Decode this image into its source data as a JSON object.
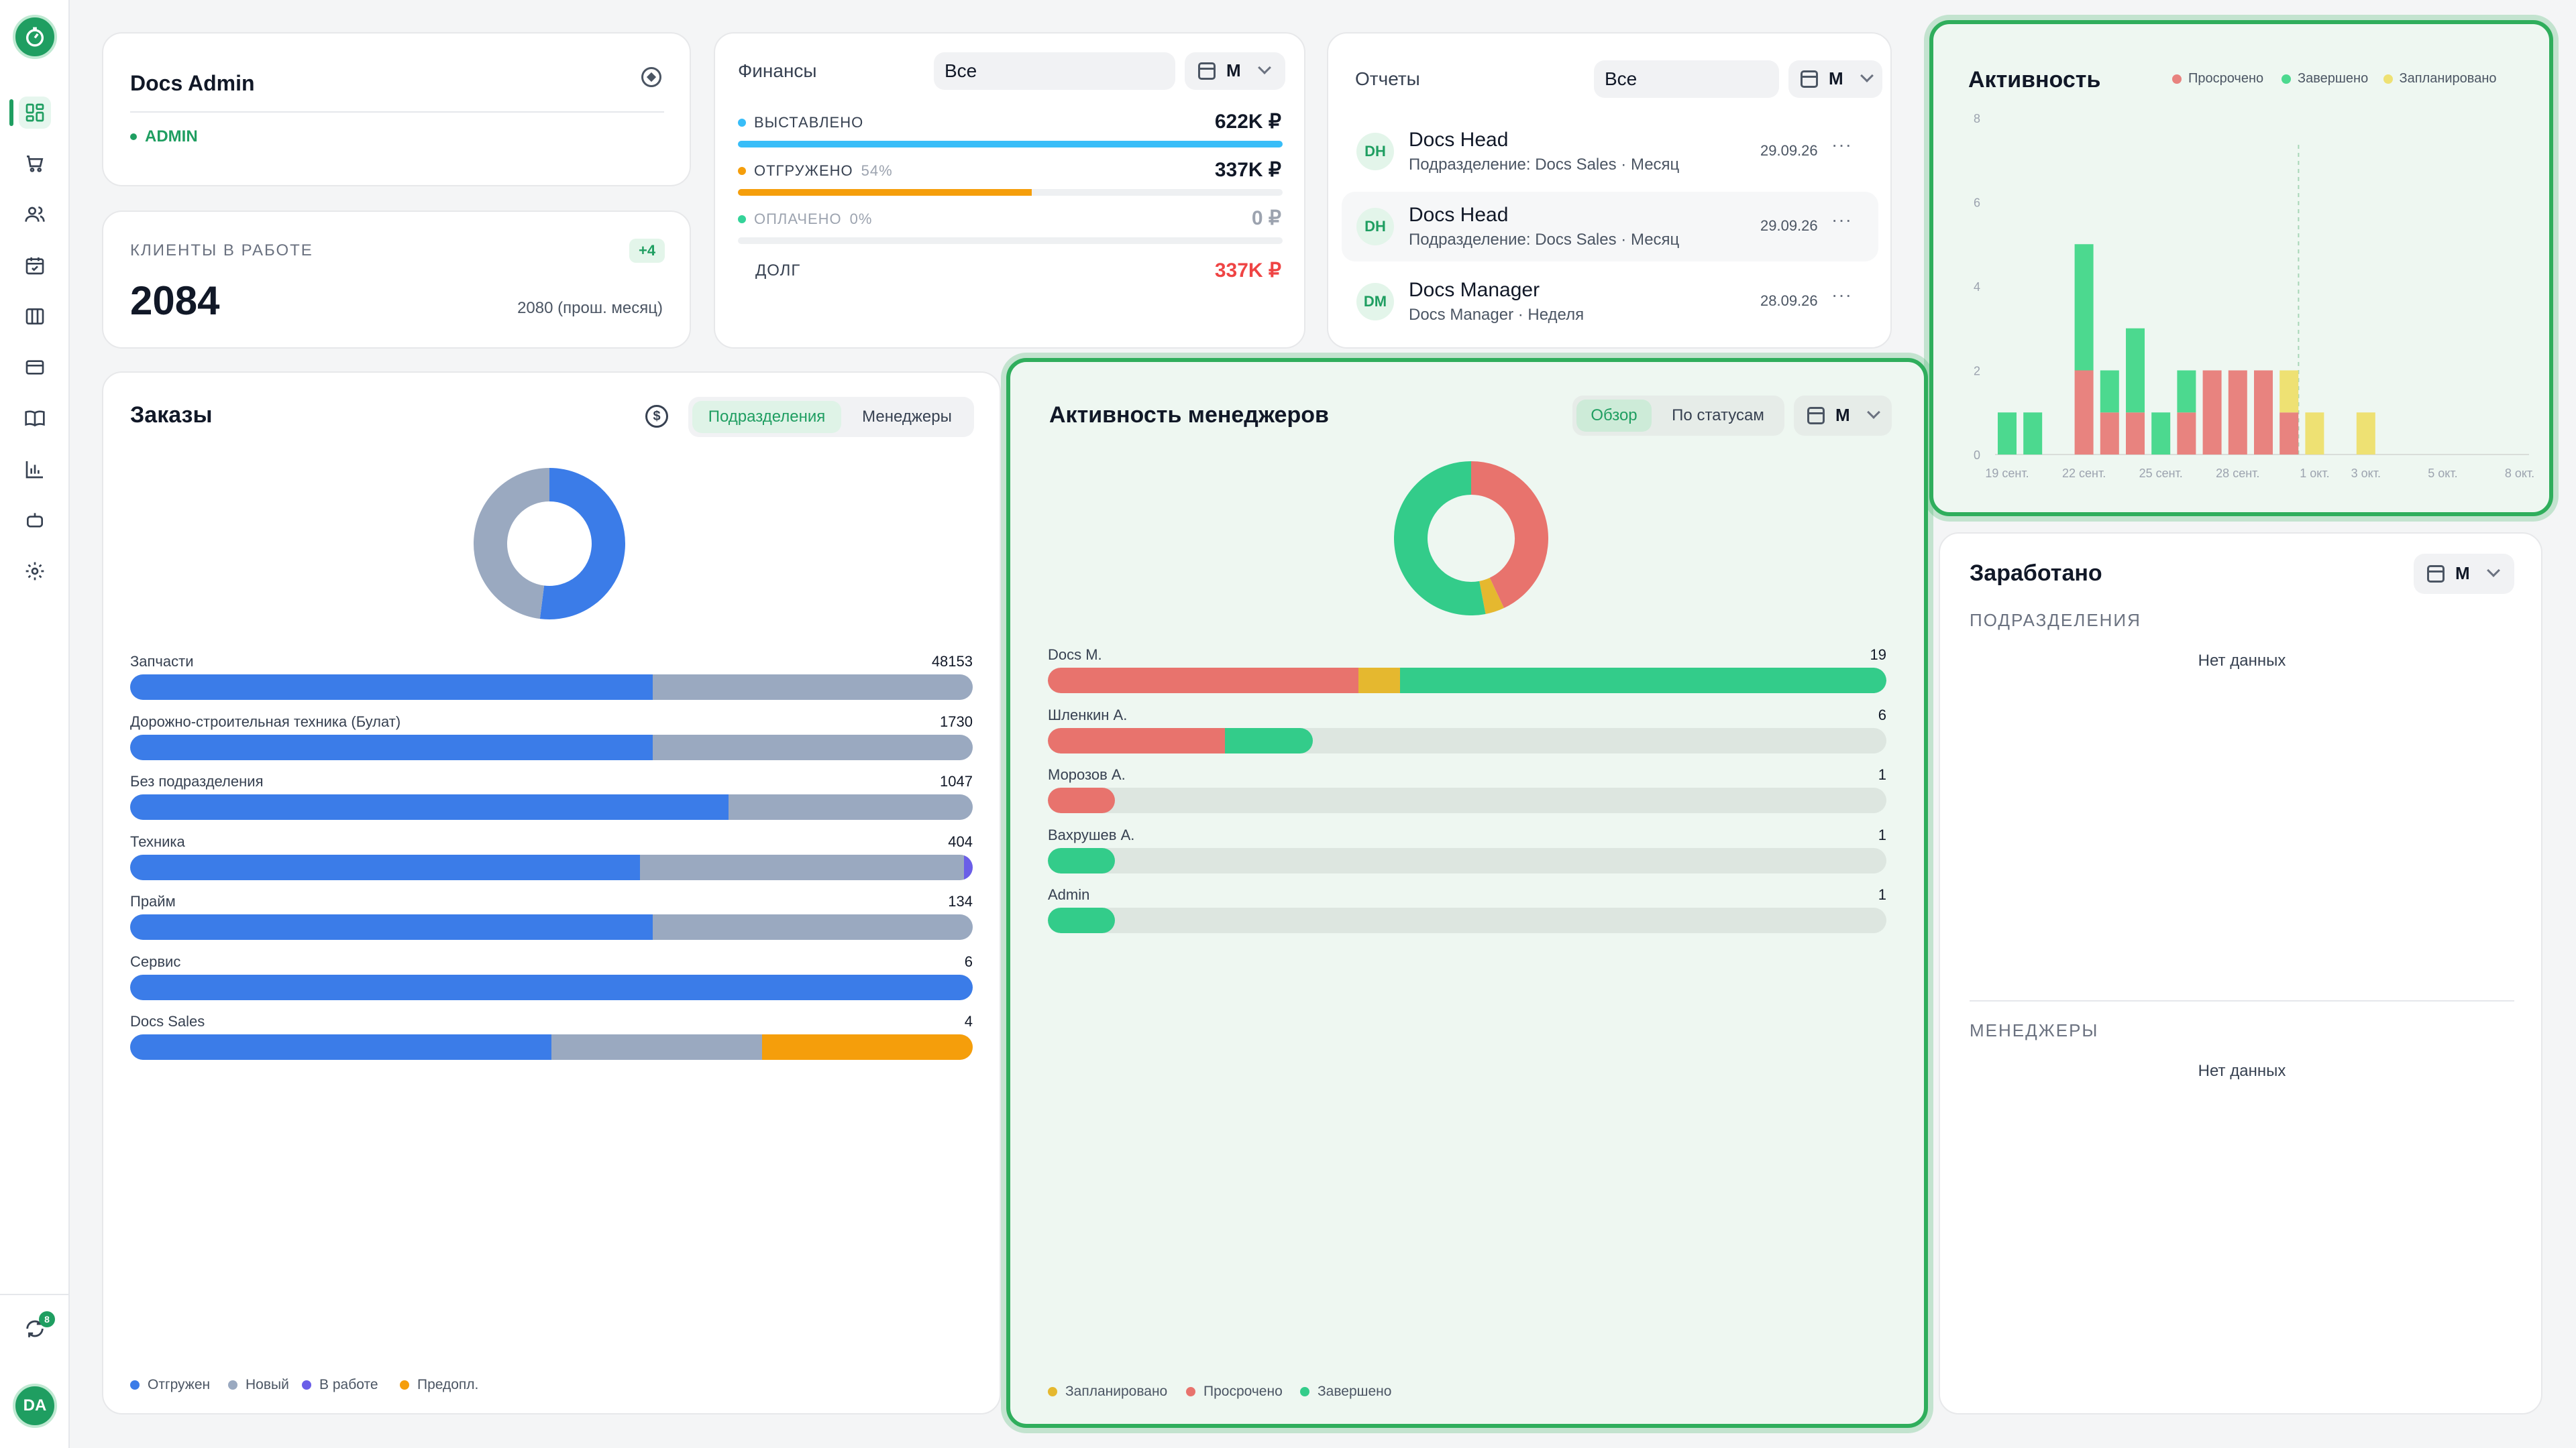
{
  "sidebar": {
    "nav": [
      "dashboard-icon",
      "cart-icon",
      "users-icon",
      "calendar-check-icon",
      "columns-icon",
      "card-icon",
      "book-icon",
      "bar-chart-icon",
      "robot-icon",
      "settings-icon"
    ],
    "sync_badge": "8",
    "avatar": "DA"
  },
  "profile": {
    "name": "Docs Admin",
    "role": "ADMIN"
  },
  "clients": {
    "label": "КЛИЕНТЫ В РАБОТЕ",
    "delta": "+4",
    "value": "2084",
    "prev": "2080 (прош. месяц)"
  },
  "finance": {
    "title": "Финансы",
    "filter": "Все",
    "period": "М",
    "rows": [
      {
        "label": "ВЫСТАВЛЕНО",
        "pct": "",
        "value": "622K ₽",
        "fill": 1.0,
        "color": "#38bdf8"
      },
      {
        "label": "ОТГРУЖЕНО",
        "pct": "54%",
        "value": "337K ₽",
        "fill": 0.54,
        "color": "#f59e0b"
      },
      {
        "label": "ОПЛАЧЕНО",
        "pct": "0%",
        "value": "0 ₽",
        "fill": 0,
        "color": "#34d399"
      }
    ],
    "debt_label": "ДОЛГ",
    "debt_value": "337K ₽"
  },
  "reports": {
    "title": "Отчеты",
    "filter": "Все",
    "period": "М",
    "items": [
      {
        "initials": "DH",
        "name": "Docs Head",
        "sub": "Подразделение: Docs Sales · Месяц",
        "date": "29.09.26"
      },
      {
        "initials": "DH",
        "name": "Docs Head",
        "sub": "Подразделение: Docs Sales · Месяц",
        "date": "29.09.26"
      },
      {
        "initials": "DM",
        "name": "Docs Manager",
        "sub": "Docs Manager · Неделя",
        "date": "28.09.26"
      }
    ]
  },
  "activity": {
    "title": "Активность",
    "legend": [
      {
        "label": "Просрочено",
        "color": "#e8837f"
      },
      {
        "label": "Завершено",
        "color": "#4cd98f"
      },
      {
        "label": "Запланировано",
        "color": "#eee173"
      }
    ],
    "y_ticks": [
      "8",
      "6",
      "4",
      "2",
      "0"
    ],
    "x_ticks": [
      "19 сент.",
      "22 сент.",
      "25 сент.",
      "28 сент.",
      "1 окт.",
      "3 окт.",
      "5 окт.",
      "8 окт."
    ]
  },
  "chart_data": {
    "type": "bar",
    "ylim": [
      0,
      8
    ],
    "categories": [
      "19 сент.",
      "20 сент.",
      "21 сент.",
      "22 сент.",
      "23 сент.",
      "24 сент.",
      "25 сент.",
      "26 сент.",
      "27 сент.",
      "28 сент.",
      "29 сент.",
      "30 сент.",
      "1 окт.",
      "2 окт.",
      "3 окт."
    ],
    "series": [
      {
        "name": "Просрочено",
        "color": "#e8837f",
        "values": [
          0,
          0,
          0,
          2,
          1,
          1,
          0,
          1,
          2,
          2,
          2,
          1,
          0,
          0,
          0
        ]
      },
      {
        "name": "Завершено",
        "color": "#4cd98f",
        "values": [
          1,
          1,
          0,
          3,
          1,
          2,
          1,
          1,
          0,
          0,
          0,
          0,
          0,
          0,
          0
        ]
      },
      {
        "name": "Запланировано",
        "color": "#eee173",
        "values": [
          0,
          0,
          0,
          0,
          0,
          0,
          0,
          0,
          0,
          0,
          0,
          1,
          1,
          0,
          1
        ]
      }
    ],
    "xlabel": "",
    "ylabel": ""
  },
  "orders": {
    "title": "Заказы",
    "tabs": [
      "Подразделения",
      "Менеджеры"
    ],
    "donut": [
      {
        "label": "Отгружен",
        "value": 0.52,
        "color": "#3b7ce8"
      },
      {
        "label": "Новый",
        "value": 0.48,
        "color": "#9aa9c0"
      }
    ],
    "rows": [
      {
        "label": "Запчасти",
        "value": "48153",
        "parts": [
          0.62,
          0.38,
          0,
          0
        ]
      },
      {
        "label": "Дорожно-строительная техника (Булат)",
        "value": "1730",
        "parts": [
          0.62,
          0.38,
          0,
          0
        ]
      },
      {
        "label": "Без подразделения",
        "value": "1047",
        "parts": [
          0.71,
          0.29,
          0,
          0
        ]
      },
      {
        "label": "Техника",
        "value": "404",
        "parts": [
          0.605,
          0.385,
          0.01,
          0
        ]
      },
      {
        "label": "Прайм",
        "value": "134",
        "parts": [
          0.62,
          0.38,
          0,
          0
        ]
      },
      {
        "label": "Сервис",
        "value": "6",
        "parts": [
          1,
          0,
          0,
          0
        ]
      },
      {
        "label": "Docs Sales",
        "value": "4",
        "parts": [
          0.5,
          0.25,
          0,
          0.25
        ]
      }
    ],
    "legend": [
      {
        "label": "Отгружен",
        "color": "#3b7ce8"
      },
      {
        "label": "Новый",
        "color": "#9aa9c0"
      },
      {
        "label": "В работе",
        "color": "#6a5ee8"
      },
      {
        "label": "Предопл.",
        "color": "#f59e0b"
      }
    ]
  },
  "managers": {
    "title": "Активность менеджеров",
    "tabs": [
      "Обзор",
      "По статусам"
    ],
    "period": "М",
    "donut": [
      {
        "label": "Просрочено",
        "value": 0.43,
        "color": "#e8736d"
      },
      {
        "label": "Запланировано",
        "value": 0.04,
        "color": "#e5b82f"
      },
      {
        "label": "Завершено",
        "value": 0.53,
        "color": "#33cc8a"
      }
    ],
    "rows": [
      {
        "name": "Docs M.",
        "value": "19",
        "count": 19,
        "parts": [
          0.37,
          0.05,
          0.58
        ]
      },
      {
        "name": "Шленкин А.",
        "value": "6",
        "count": 6,
        "parts": [
          0.67,
          0,
          0.33
        ]
      },
      {
        "name": "Морозов А.",
        "value": "1",
        "count": 1,
        "parts": [
          1,
          0,
          0
        ]
      },
      {
        "name": "Вахрушев А.",
        "value": "1",
        "count": 1,
        "parts": [
          0,
          0,
          1
        ]
      },
      {
        "name": "Admin",
        "value": "1",
        "count": 1,
        "parts": [
          0,
          0,
          1
        ]
      }
    ],
    "legend": [
      {
        "label": "Запланировано",
        "color": "#e5b82f"
      },
      {
        "label": "Просрочено",
        "color": "#e8736d"
      },
      {
        "label": "Завершено",
        "color": "#33cc8a"
      }
    ]
  },
  "earned": {
    "title": "Заработано",
    "period": "М",
    "divisions_label": "ПОДРАЗДЕЛЕНИЯ",
    "divisions_empty": "Нет данных",
    "managers_label": "МЕНЕДЖЕРЫ",
    "managers_empty": "Нет данных"
  }
}
